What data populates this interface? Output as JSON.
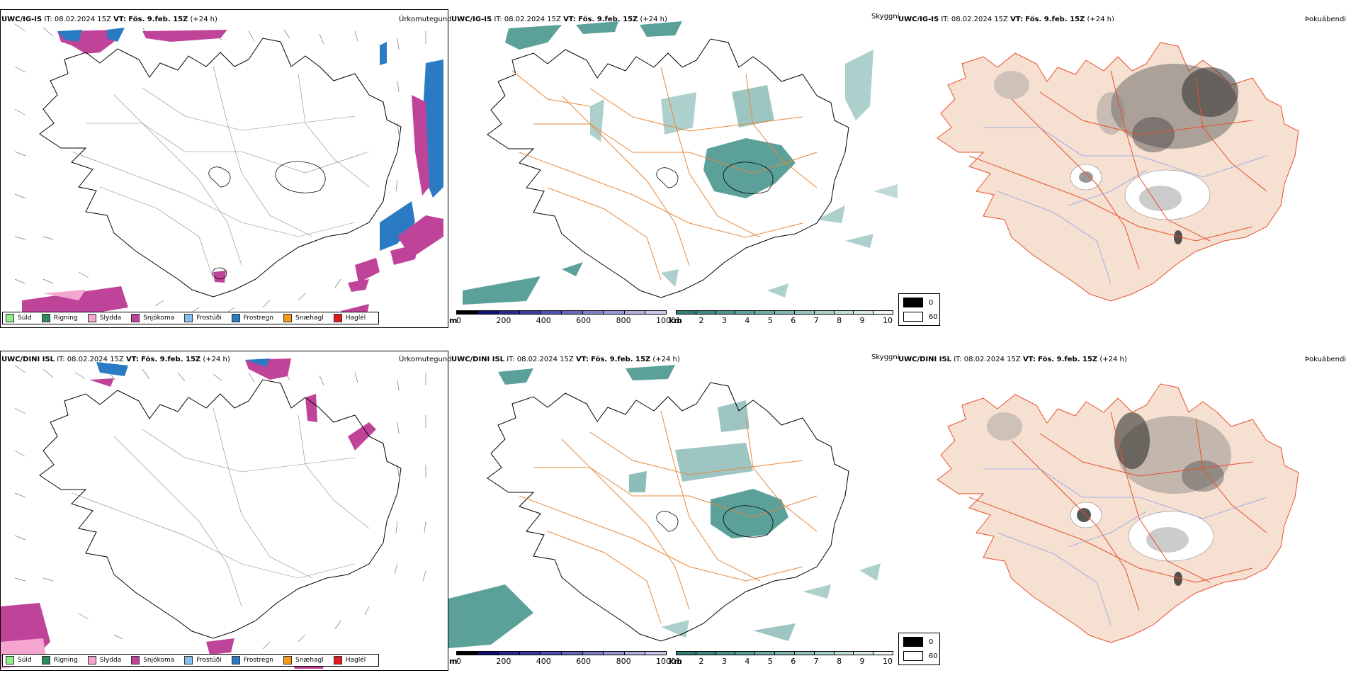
{
  "rows": [
    {
      "model": "UWC/IG-IS",
      "it": "08.02.2024 15Z",
      "vt": "Fös. 9.feb. 15Z",
      "lead": "(+24 h)"
    },
    {
      "model": "UWC/DINI ISL",
      "it": "08.02.2024 15Z",
      "vt": "Fös. 9.feb. 15Z",
      "lead": "(+24 h)"
    }
  ],
  "labels": {
    "it_prefix": "IT:",
    "vt_prefix": "VT:",
    "precip_type_title": "Úrkomutegund",
    "visibility_title": "Skyggni",
    "fog_title": "Þokuábendi"
  },
  "precip_legend": [
    {
      "label": "Súld",
      "color": "#90ee90"
    },
    {
      "label": "Rigning",
      "color": "#2e8b57"
    },
    {
      "label": "Slydda",
      "color": "#f4a6d0"
    },
    {
      "label": "Snjókoma",
      "color": "#c0439a"
    },
    {
      "label": "Frostúði",
      "color": "#87bdf0"
    },
    {
      "label": "Frostregn",
      "color": "#2a7bc4"
    },
    {
      "label": "Snæhagl",
      "color": "#f39c12"
    },
    {
      "label": "Haglél",
      "color": "#e31a1c"
    }
  ],
  "height_bar": {
    "unit": "m",
    "ticks": [
      "0",
      "200",
      "400",
      "600",
      "800",
      "1000"
    ],
    "colors": [
      "#000000",
      "#101070",
      "#282890",
      "#3c3ca0",
      "#5050b0",
      "#6868bc",
      "#8080c8",
      "#9898d4",
      "#b0b0e0",
      "#c8c8ea"
    ]
  },
  "visibility_bar": {
    "unit": "km",
    "ticks": [
      "1",
      "2",
      "3",
      "4",
      "5",
      "6",
      "7",
      "8",
      "9",
      "10"
    ],
    "colors": [
      "#2f7f76",
      "#3d8a82",
      "#4c958d",
      "#5ca099",
      "#6daba4",
      "#80b7b0",
      "#94c3bd",
      "#a9d0ca",
      "#bfdcd8",
      "#d6e9e6",
      "#eef6f5"
    ]
  },
  "fog_scale": [
    {
      "label": "0",
      "color": "#000000"
    },
    {
      "label": "60",
      "color": "#ffffff"
    }
  ],
  "colors": {
    "land_fog": "#f5e0d2",
    "roads_vis": "#e8883a",
    "roads_fog": "#e8502a",
    "rivers": "#8da2e6",
    "vis_teal": "#3e9088"
  }
}
